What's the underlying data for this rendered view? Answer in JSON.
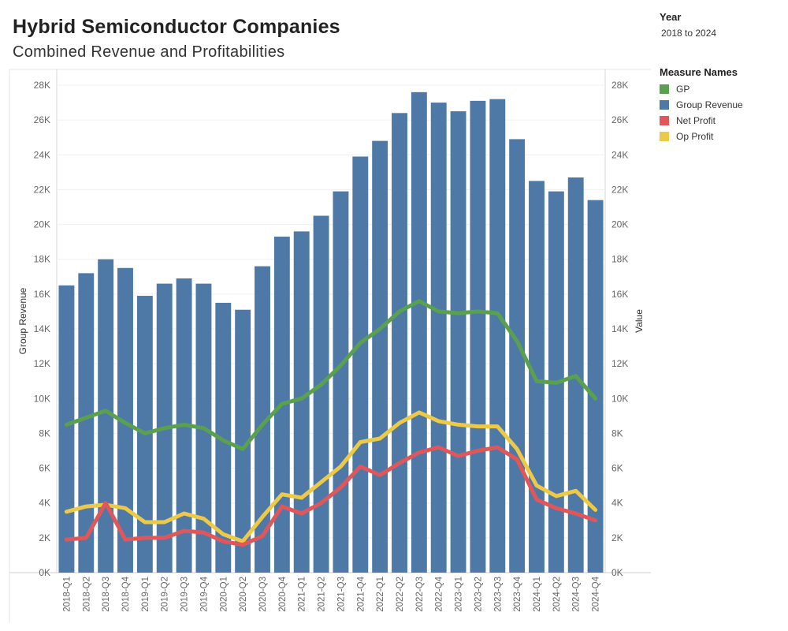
{
  "header": {
    "title": "Hybrid Semiconductor Companies",
    "subtitle": "Combined Revenue and Profitabilities"
  },
  "filter": {
    "title": "Year",
    "value": "2018 to 2024"
  },
  "legend": {
    "title": "Measure Names",
    "items": [
      {
        "label": "GP",
        "color": "#59a14f"
      },
      {
        "label": "Group Revenue",
        "color": "#4e79a7"
      },
      {
        "label": "Net Profit",
        "color": "#e15759"
      },
      {
        "label": "Op Profit",
        "color": "#edc948"
      }
    ]
  },
  "chart_data": {
    "type": "bar+line",
    "y_left_label": "Group Revenue",
    "y_right_label": "Value",
    "ylim": [
      0,
      28000
    ],
    "y_ticks": [
      0,
      2000,
      4000,
      6000,
      8000,
      10000,
      12000,
      14000,
      16000,
      18000,
      20000,
      22000,
      24000,
      26000,
      28000
    ],
    "y_tick_labels": [
      "0K",
      "2K",
      "4K",
      "6K",
      "8K",
      "10K",
      "12K",
      "14K",
      "16K",
      "18K",
      "20K",
      "22K",
      "24K",
      "26K",
      "28K"
    ],
    "categories": [
      "2018-Q1",
      "2018-Q2",
      "2018-Q3",
      "2018-Q4",
      "2019-Q1",
      "2019-Q2",
      "2019-Q3",
      "2019-Q4",
      "2020-Q1",
      "2020-Q2",
      "2020-Q3",
      "2020-Q4",
      "2021-Q1",
      "2021-Q2",
      "2021-Q3",
      "2021-Q4",
      "2022-Q1",
      "2022-Q2",
      "2022-Q3",
      "2022-Q4",
      "2023-Q1",
      "2023-Q2",
      "2023-Q3",
      "2023-Q4",
      "2024-Q1",
      "2024-Q2",
      "2024-Q3",
      "2024-Q4"
    ],
    "bar_series": {
      "name": "Group Revenue",
      "color": "#4e79a7",
      "values": [
        16500,
        17200,
        18000,
        17500,
        15900,
        16600,
        16900,
        16600,
        15500,
        15100,
        17600,
        19300,
        19600,
        20500,
        21900,
        23900,
        24800,
        26400,
        27600,
        27000,
        26500,
        27100,
        27200,
        24900,
        22500,
        21900,
        22700,
        21400
      ]
    },
    "line_series": [
      {
        "name": "GP",
        "color": "#59a14f",
        "values": [
          8500,
          8900,
          9300,
          8600,
          8000,
          8300,
          8500,
          8300,
          7600,
          7100,
          8500,
          9700,
          10000,
          10800,
          11900,
          13200,
          14000,
          15000,
          15600,
          15000,
          14900,
          15000,
          14900,
          13300,
          11000,
          10900,
          11300,
          10000
        ]
      },
      {
        "name": "Op Profit",
        "color": "#edc948",
        "values": [
          3500,
          3800,
          3900,
          3700,
          2900,
          2900,
          3400,
          3100,
          2200,
          1800,
          3200,
          4500,
          4300,
          5200,
          6100,
          7500,
          7700,
          8600,
          9200,
          8700,
          8500,
          8400,
          8400,
          7100,
          5000,
          4400,
          4700,
          3600
        ]
      },
      {
        "name": "Net Profit",
        "color": "#e15759",
        "values": [
          1900,
          2000,
          4000,
          1900,
          2000,
          2000,
          2400,
          2300,
          1800,
          1600,
          2100,
          3800,
          3400,
          4000,
          4900,
          6100,
          5600,
          6300,
          6900,
          7200,
          6700,
          7000,
          7200,
          6500,
          4200,
          3700,
          3400,
          3000
        ]
      }
    ]
  }
}
